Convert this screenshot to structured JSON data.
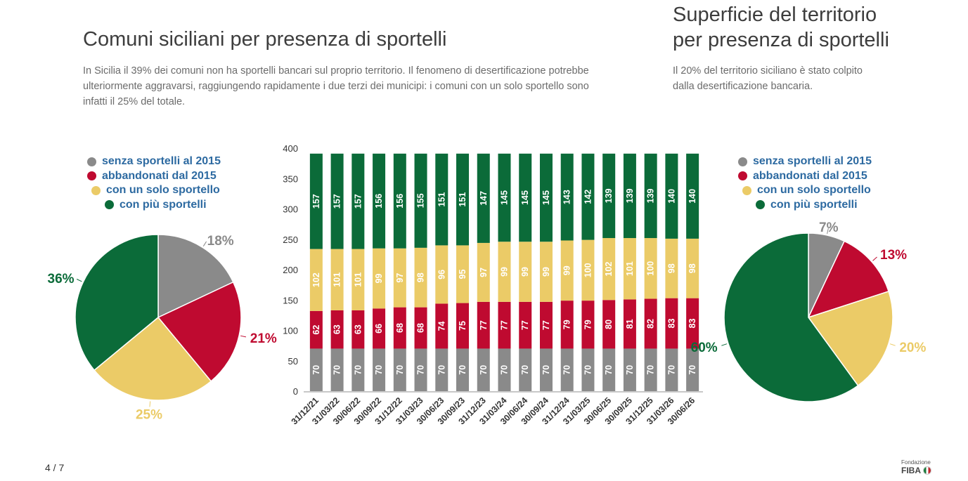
{
  "left_panel": {
    "title": "Comuni siciliani per presenza di sportelli",
    "description": "In Sicilia il 39% dei comuni non ha sportelli bancari sul proprio territorio. Il fenomeno di desertificazione potrebbe ulteriormente aggravarsi, raggiungendo rapidamente i due terzi dei municipi: i comuni con un solo sportello sono infatti il 25% del totale."
  },
  "right_panel": {
    "title_line1": "Superficie del territorio",
    "title_line2": "per presenza di sportelli",
    "description": "Il 20% del territorio siciliano è stato colpito dalla desertificazione bancaria."
  },
  "legend": [
    {
      "label": "senza sportelli al 2015",
      "color": "#8a8a8a"
    },
    {
      "label": "abbandonati dal 2015",
      "color": "#bf0a30"
    },
    {
      "label": "con un solo sportello",
      "color": "#ebcb67"
    },
    {
      "label": "con più sportelli",
      "color": "#0b6b39"
    }
  ],
  "chart_data": [
    {
      "type": "pie",
      "slices": [
        {
          "label": "senza sportelli al 2015",
          "value": 18,
          "text": "18%",
          "color": "#8a8a8a"
        },
        {
          "label": "abbandonati dal 2015",
          "value": 21,
          "text": "21%",
          "color": "#bf0a30"
        },
        {
          "label": "con un solo sportello",
          "value": 25,
          "text": "25%",
          "color": "#ebcb67"
        },
        {
          "label": "con più sportelli",
          "value": 36,
          "text": "36%",
          "color": "#0b6b39"
        }
      ]
    },
    {
      "type": "bar",
      "stacked": true,
      "categories": [
        "31/12/21",
        "31/03/22",
        "30/06/22",
        "30/09/22",
        "31/12/22",
        "31/03/23",
        "30/06/23",
        "30/09/23",
        "31/12/23",
        "31/03/24",
        "30/06/24",
        "30/09/24",
        "31/12/24",
        "31/03/25",
        "30/06/25",
        "30/09/25",
        "31/12/25",
        "31/03/26",
        "30/06/26"
      ],
      "series": [
        {
          "name": "senza sportelli al 2015",
          "color": "#8a8a8a",
          "values": [
            70,
            70,
            70,
            70,
            70,
            70,
            70,
            70,
            70,
            70,
            70,
            70,
            70,
            70,
            70,
            70,
            70,
            70,
            70
          ]
        },
        {
          "name": "abbandonati dal 2015",
          "color": "#bf0a30",
          "values": [
            62,
            63,
            63,
            66,
            68,
            68,
            74,
            75,
            77,
            77,
            77,
            77,
            79,
            79,
            80,
            81,
            82,
            83,
            83
          ]
        },
        {
          "name": "con un solo sportello",
          "color": "#ebcb67",
          "values": [
            102,
            101,
            101,
            99,
            97,
            98,
            96,
            95,
            97,
            99,
            99,
            99,
            99,
            100,
            102,
            101,
            100,
            98,
            98
          ]
        },
        {
          "name": "con più sportelli",
          "color": "#0b6b39",
          "values": [
            157,
            157,
            157,
            156,
            156,
            155,
            151,
            151,
            147,
            145,
            145,
            145,
            143,
            142,
            139,
            139,
            139,
            140,
            140
          ]
        }
      ],
      "yticks": [
        0,
        50,
        100,
        150,
        200,
        250,
        300,
        350,
        400
      ],
      "ylim": [
        0,
        400
      ]
    },
    {
      "type": "pie",
      "slices": [
        {
          "label": "senza sportelli al 2015",
          "value": 7,
          "text": "7%",
          "color": "#8a8a8a"
        },
        {
          "label": "abbandonati dal 2015",
          "value": 13,
          "text": "13%",
          "color": "#bf0a30"
        },
        {
          "label": "con un solo sportello",
          "value": 20,
          "text": "20%",
          "color": "#ebcb67"
        },
        {
          "label": "con più sportelli",
          "value": 60,
          "text": "60%",
          "color": "#0b6b39"
        }
      ]
    }
  ],
  "footer": {
    "page_indicator": "4 / 7",
    "logo_small": "Fondazione",
    "logo_big": "FIBA"
  }
}
